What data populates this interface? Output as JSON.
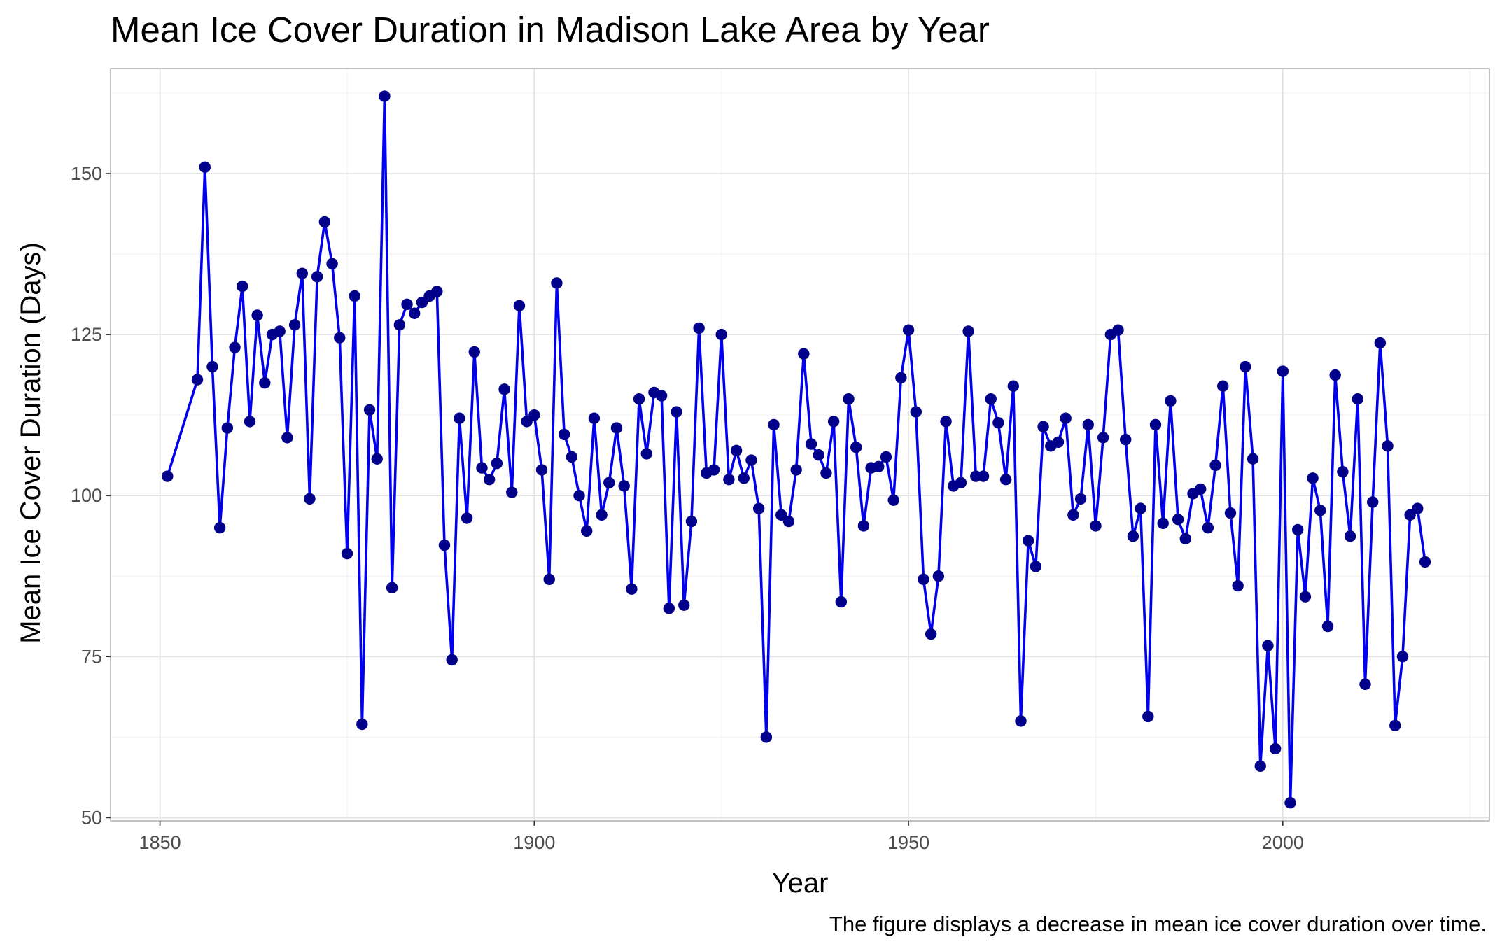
{
  "chart_data": {
    "type": "line",
    "title": "Mean Ice Cover Duration in Madison Lake Area by Year",
    "xlabel": "Year",
    "ylabel": "Mean Ice Cover Duration (Days)",
    "caption": "The figure displays a decrease in mean ice cover duration over time.",
    "xlim": [
      1843.4,
      2027.6
    ],
    "ylim": [
      49.5,
      166.3
    ],
    "x_ticks": [
      1850,
      1900,
      1950,
      2000
    ],
    "x_tick_labels": [
      "1850",
      "1900",
      "1950",
      "2000"
    ],
    "y_ticks": [
      50,
      75,
      100,
      125,
      150
    ],
    "y_tick_labels": [
      "50",
      "75",
      "100",
      "125",
      "150"
    ],
    "grid": true,
    "legend": "none",
    "colors": {
      "line": "#0000ee",
      "points": "#00008b"
    },
    "series": [
      {
        "x": [
          1851,
          1855,
          1856,
          1857,
          1858,
          1859,
          1860,
          1861,
          1862,
          1863,
          1864,
          1865,
          1866,
          1867,
          1868,
          1869,
          1870,
          1871,
          1872,
          1873,
          1874,
          1875,
          1876,
          1877,
          1878,
          1879,
          1880,
          1881,
          1882,
          1883,
          1884,
          1885,
          1886,
          1887,
          1888,
          1889,
          1890,
          1891,
          1892,
          1893,
          1894,
          1895,
          1896,
          1897,
          1898,
          1899,
          1900,
          1901,
          1902,
          1903,
          1904,
          1905,
          1906,
          1907,
          1908,
          1909,
          1910,
          1911,
          1912,
          1913,
          1914,
          1915,
          1916,
          1917,
          1918,
          1919,
          1920,
          1921,
          1922,
          1923,
          1924,
          1925,
          1926,
          1927,
          1928,
          1929,
          1930,
          1931,
          1932,
          1933,
          1934,
          1935,
          1936,
          1937,
          1938,
          1939,
          1940,
          1941,
          1942,
          1943,
          1944,
          1945,
          1946,
          1947,
          1948,
          1949,
          1950,
          1951,
          1952,
          1953,
          1954,
          1955,
          1956,
          1957,
          1958,
          1959,
          1960,
          1961,
          1962,
          1963,
          1964,
          1965,
          1966,
          1967,
          1968,
          1969,
          1970,
          1971,
          1972,
          1973,
          1974,
          1975,
          1976,
          1977,
          1978,
          1979,
          1980,
          1981,
          1982,
          1983,
          1984,
          1985,
          1986,
          1987,
          1988,
          1989,
          1990,
          1991,
          1992,
          1993,
          1994,
          1995,
          1996,
          1997,
          1998,
          1999,
          2000,
          2001,
          2002,
          2003,
          2004,
          2005,
          2006,
          2007,
          2008,
          2009,
          2010,
          2011,
          2012,
          2013,
          2014,
          2015,
          2016,
          2017,
          2018,
          2019
        ],
        "y": [
          103,
          118,
          151,
          120,
          95,
          110.5,
          123,
          132.5,
          111.5,
          128,
          117.5,
          125,
          125.5,
          109,
          126.5,
          134.5,
          99.5,
          134,
          142.5,
          136,
          124.5,
          91,
          131,
          64.5,
          113.3,
          105.7,
          162,
          85.7,
          126.5,
          129.7,
          128.3,
          130,
          131,
          131.7,
          92.3,
          74.5,
          112,
          96.5,
          122.3,
          104.3,
          102.5,
          105,
          116.5,
          100.5,
          129.5,
          111.5,
          112.5,
          104,
          87,
          133,
          109.5,
          106,
          100,
          94.5,
          112,
          97,
          102,
          110.5,
          101.5,
          85.5,
          115,
          106.5,
          116,
          115.5,
          82.5,
          113,
          83,
          96,
          126,
          103.5,
          104,
          125,
          102.5,
          107,
          102.7,
          105.5,
          98,
          62.5,
          111,
          97,
          96,
          104,
          122,
          108,
          106.3,
          103.5,
          111.5,
          83.5,
          115,
          107.5,
          95.3,
          104.3,
          104.5,
          106,
          99.3,
          118.3,
          125.7,
          113,
          87,
          78.5,
          87.5,
          111.5,
          101.5,
          102,
          125.5,
          103,
          103,
          115,
          111.3,
          102.5,
          117,
          65,
          93,
          89,
          110.7,
          107.7,
          108.3,
          112,
          97,
          99.5,
          111,
          95.3,
          109,
          125,
          125.7,
          108.7,
          93.7,
          98,
          65.7,
          111,
          95.7,
          114.7,
          96.3,
          93.3,
          100.3,
          101,
          95,
          104.7,
          117,
          97.3,
          86,
          120,
          105.7,
          58,
          76.7,
          60.7,
          119.3,
          52.3,
          94.7,
          84.3,
          102.7,
          97.7,
          79.7,
          118.7,
          103.7,
          93.7,
          115,
          70.7,
          99,
          123.7,
          107.7,
          64.3,
          75,
          97,
          98,
          89.7
        ]
      }
    ]
  }
}
